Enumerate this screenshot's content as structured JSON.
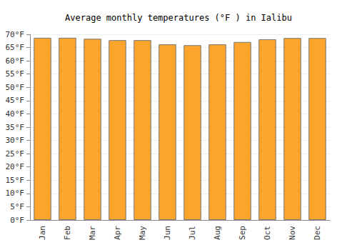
{
  "chart_data": {
    "type": "bar",
    "title": "Average monthly temperatures (°F ) in Ialibu",
    "categories": [
      "Jan",
      "Feb",
      "Mar",
      "Apr",
      "May",
      "Jun",
      "Jul",
      "Aug",
      "Sep",
      "Oct",
      "Nov",
      "Dec"
    ],
    "values": [
      68.7,
      68.7,
      68.3,
      67.8,
      67.8,
      66.2,
      65.9,
      66.2,
      67.1,
      68.1,
      68.6,
      68.6
    ],
    "color": "#fca52c",
    "ylim": [
      0,
      70
    ],
    "yticks": [
      {
        "value": 0,
        "label": "0°F"
      },
      {
        "value": 5,
        "label": "5°F"
      },
      {
        "value": 10,
        "label": "10°F"
      },
      {
        "value": 15,
        "label": "15°F"
      },
      {
        "value": 20,
        "label": "20°F"
      },
      {
        "value": 25,
        "label": "25°F"
      },
      {
        "value": 30,
        "label": "30°F"
      },
      {
        "value": 35,
        "label": "35°F"
      },
      {
        "value": 40,
        "label": "40°F"
      },
      {
        "value": 45,
        "label": "45°F"
      },
      {
        "value": 50,
        "label": "50°F"
      },
      {
        "value": 55,
        "label": "55°F"
      },
      {
        "value": 60,
        "label": "60°F"
      },
      {
        "value": 65,
        "label": "65°F"
      },
      {
        "value": 70,
        "label": "70°F"
      }
    ],
    "grid": true
  }
}
